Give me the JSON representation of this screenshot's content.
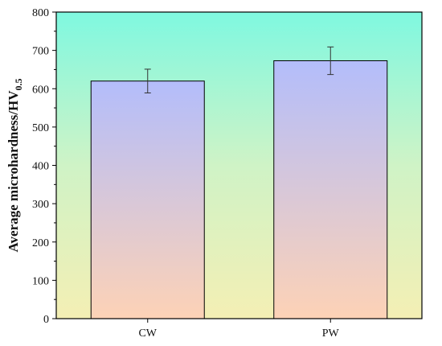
{
  "chart_data": {
    "type": "bar",
    "categories": [
      "CW",
      "PW"
    ],
    "values": [
      620,
      673
    ],
    "errors": [
      31,
      36
    ],
    "ylabel": "Average microhardness/HV",
    "ylabel_subscript": "0.5",
    "xlabel": "",
    "ylim": [
      0,
      800
    ],
    "yticks": [
      0,
      100,
      200,
      300,
      400,
      500,
      600,
      700,
      800
    ],
    "grid": false,
    "colors": {
      "background_top": "#7ff8e0",
      "background_mid": "#cff3c6",
      "background_bottom": "#f4efb4",
      "bar_top": "#b3bdfb",
      "bar_bottom": "#fdd2b6",
      "stroke": "#000000"
    }
  }
}
